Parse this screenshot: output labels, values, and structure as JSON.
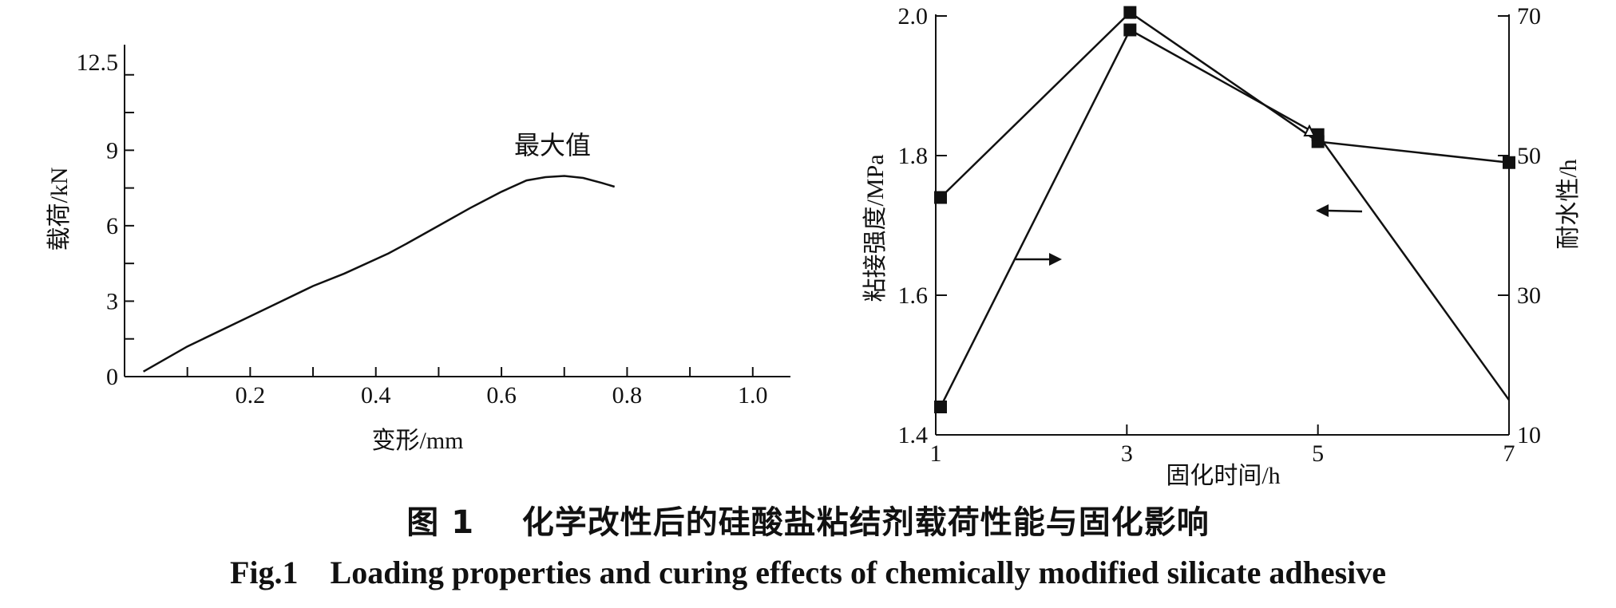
{
  "chart_data": [
    {
      "type": "line",
      "xlabel": "变形/mm",
      "ylabel": "载荷/kN",
      "xlim": [
        0,
        1.06
      ],
      "ylim": [
        0,
        13.5
      ],
      "x_ticks": [
        0.2,
        0.4,
        0.6,
        0.8,
        1.0
      ],
      "x_tick_labels": [
        "0.2",
        "0.4",
        "0.6",
        "0.8",
        "1.0"
      ],
      "y_ticks": [
        0,
        3,
        6,
        9,
        12.5
      ],
      "y_tick_labels": [
        "0",
        "3",
        "6",
        "9",
        "12.5"
      ],
      "annotation": "最大值",
      "series": [
        {
          "x": [
            0.03,
            0.1,
            0.2,
            0.3,
            0.35,
            0.42,
            0.45,
            0.5,
            0.55,
            0.6,
            0.64,
            0.67,
            0.7,
            0.73,
            0.76,
            0.78
          ],
          "y": [
            0.2,
            1.2,
            2.4,
            3.6,
            4.1,
            4.9,
            5.3,
            6.0,
            6.7,
            7.35,
            7.8,
            7.93,
            7.98,
            7.9,
            7.7,
            7.55
          ]
        }
      ]
    },
    {
      "type": "line",
      "xlabel": "固化时间/h",
      "ylabel": "粘接强度/MPa",
      "y2label": "耐水性/h",
      "xlim": [
        1,
        7
      ],
      "ylim": [
        1.4,
        2.0
      ],
      "y2lim": [
        10,
        70
      ],
      "x_ticks": [
        1,
        3,
        5,
        7
      ],
      "x_tick_labels": [
        "1",
        "3",
        "5",
        "7"
      ],
      "y_ticks": [
        1.4,
        1.6,
        1.8,
        2.0
      ],
      "y_tick_labels": [
        "1.4",
        "1.6",
        "1.8",
        "2.0"
      ],
      "y2_ticks": [
        10,
        30,
        50,
        70
      ],
      "y2_tick_labels": [
        "10",
        "30",
        "50",
        "70"
      ],
      "series": [
        {
          "axis": "left",
          "marker": "square",
          "x": [
            1,
            3,
            5,
            7
          ],
          "y": [
            1.74,
            2.005,
            1.82,
            1.79
          ]
        },
        {
          "axis": "right",
          "marker": "square",
          "x": [
            1,
            3,
            5,
            7
          ],
          "y": [
            14,
            68,
            53,
            15
          ]
        }
      ]
    }
  ],
  "caption": {
    "zh_num": "图 1",
    "zh_text": "化学改性后的硅酸盐粘结剂载荷性能与固化影响",
    "en_num": "Fig.1",
    "en_text": "Loading properties and curing effects of chemically modified silicate adhesive"
  }
}
